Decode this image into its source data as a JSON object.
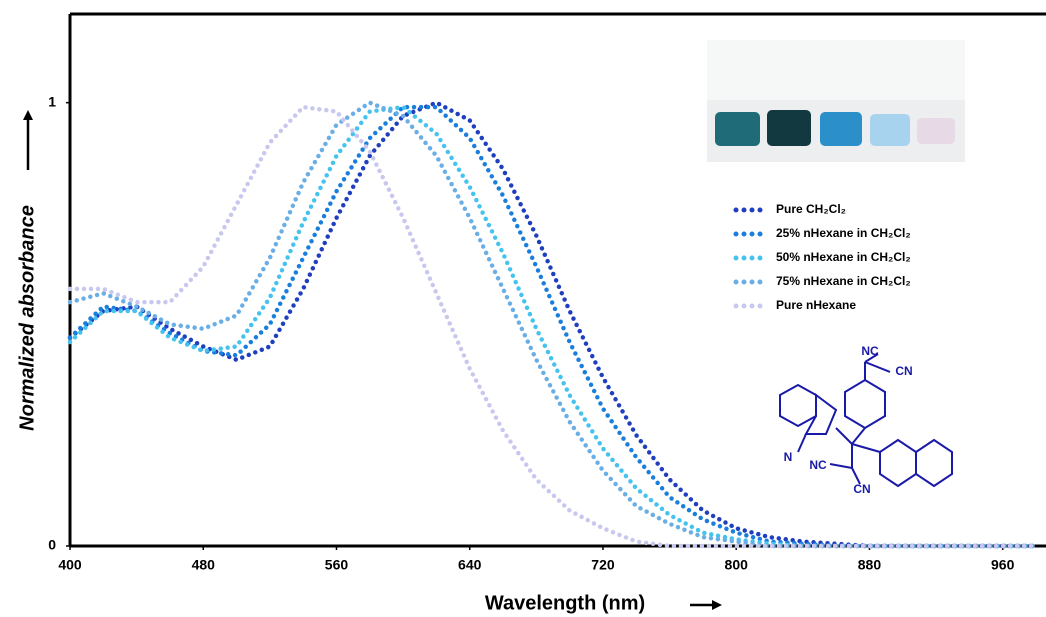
{
  "chart_data": {
    "type": "line",
    "x_label": "Wavelength (nm)",
    "y_label": "Normalized absorbance",
    "x": [
      400,
      420,
      440,
      460,
      480,
      500,
      520,
      540,
      560,
      580,
      600,
      620,
      640,
      660,
      680,
      700,
      720,
      740,
      760,
      780,
      800,
      820,
      840,
      860,
      880,
      900,
      920,
      940,
      960,
      980
    ],
    "series": [
      {
        "name": "Pure CH₂Cl₂",
        "color": "#1f3fbf",
        "values": [
          0.47,
          0.53,
          0.54,
          0.49,
          0.45,
          0.42,
          0.45,
          0.58,
          0.74,
          0.88,
          0.97,
          1.0,
          0.96,
          0.85,
          0.7,
          0.53,
          0.38,
          0.25,
          0.15,
          0.08,
          0.04,
          0.02,
          0.01,
          0.005,
          0,
          0,
          0,
          0,
          0,
          0
        ]
      },
      {
        "name": "25% nHexane in CH₂Cl₂",
        "color": "#1a7fdc",
        "values": [
          0.47,
          0.54,
          0.53,
          0.48,
          0.44,
          0.43,
          0.5,
          0.65,
          0.8,
          0.92,
          0.99,
          0.99,
          0.92,
          0.79,
          0.63,
          0.46,
          0.31,
          0.2,
          0.11,
          0.06,
          0.03,
          0.01,
          0.005,
          0,
          0,
          0,
          0,
          0,
          0,
          0
        ]
      },
      {
        "name": "50% nHexane in CH₂Cl₂",
        "color": "#45c3ee",
        "values": [
          0.46,
          0.53,
          0.53,
          0.47,
          0.44,
          0.45,
          0.56,
          0.73,
          0.88,
          0.98,
          0.99,
          0.93,
          0.81,
          0.66,
          0.49,
          0.34,
          0.22,
          0.13,
          0.07,
          0.03,
          0.015,
          0.005,
          0,
          0,
          0,
          0,
          0,
          0,
          0,
          0
        ]
      },
      {
        "name": "75% nHexane in CH₂Cl₂",
        "color": "#6aaee6",
        "values": [
          0.55,
          0.57,
          0.54,
          0.5,
          0.49,
          0.52,
          0.65,
          0.82,
          0.95,
          1.0,
          0.97,
          0.88,
          0.74,
          0.58,
          0.42,
          0.28,
          0.17,
          0.09,
          0.05,
          0.02,
          0.01,
          0,
          0,
          0,
          0,
          0,
          0,
          0,
          0,
          0
        ]
      },
      {
        "name": "Pure nHexane",
        "color": "#c8c8ef",
        "values": [
          0.58,
          0.58,
          0.55,
          0.55,
          0.63,
          0.77,
          0.91,
          0.99,
          0.98,
          0.89,
          0.74,
          0.57,
          0.4,
          0.26,
          0.15,
          0.08,
          0.04,
          0.01,
          0,
          0,
          0,
          0,
          0,
          0,
          0,
          0,
          0,
          0,
          0,
          0
        ]
      }
    ],
    "xlim": [
      400,
      986
    ],
    "ylim": [
      0,
      1.2
    ],
    "xticks": [
      400,
      480,
      560,
      640,
      720,
      800,
      880,
      960
    ],
    "yticks": [
      0,
      1
    ],
    "grid": false,
    "legend": "upper right",
    "molecule_labels": [
      "NC",
      "CN",
      "N",
      "NC",
      "CN"
    ]
  }
}
